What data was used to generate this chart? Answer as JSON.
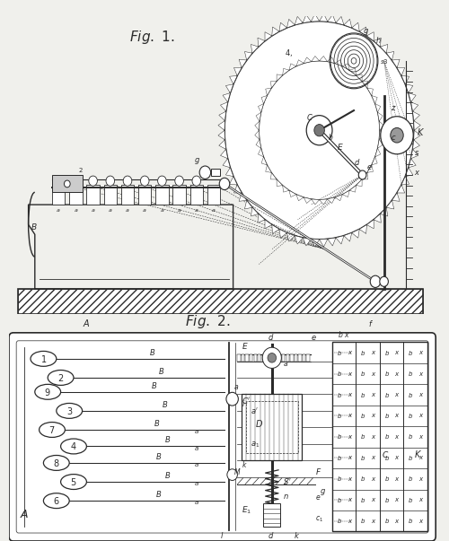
{
  "bg_color": "#e8e8e8",
  "line_color": "#2a2a2a",
  "fig1_title": "Fig. 1.",
  "fig2_title": "Fig. 2.",
  "fig_width": 5.0,
  "fig_height": 6.03,
  "dpi": 100
}
